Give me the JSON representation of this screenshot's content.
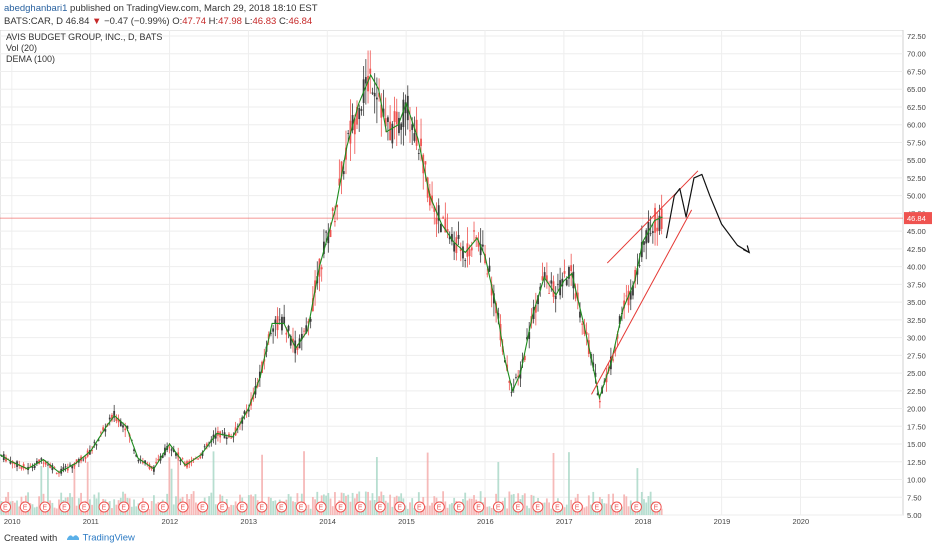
{
  "header": {
    "author": "abedghanbari1",
    "published_text": "published on TradingView.com, March 29, 2018 18:10 EST",
    "symbol_line_prefix": "BATS:CAR, D",
    "last_price": "46.84",
    "change_arrow": "▼",
    "change": "−0.47 (−0.99%)",
    "o_label": "O:",
    "o_value": "47.74",
    "h_label": "H:",
    "h_value": "47.98",
    "l_label": "L:",
    "l_value": "46.83",
    "c_label": "C:",
    "c_value": "46.84"
  },
  "legend": {
    "title": "AVIS BUDGET GROUP, INC., D, BATS",
    "vol": "Vol (20)",
    "dema": "DEMA (100)"
  },
  "footer": {
    "created_with": "Created with",
    "brand": "TradingView"
  },
  "colors": {
    "up": "#26a69a",
    "down": "#ef5350",
    "candle": "#3a3a3a",
    "dema": "#1e8c1e",
    "price_line": "#ef5350",
    "trend": "#e53935",
    "drawing": "#111111",
    "earnings": "#ef5350"
  },
  "chart_data": {
    "type": "line",
    "symbol": "BATS:CAR",
    "price_axis": {
      "ylim": [
        5.0,
        72.5
      ],
      "ticks": [
        "72.50",
        "70.00",
        "67.50",
        "65.00",
        "62.50",
        "60.00",
        "57.50",
        "55.00",
        "52.50",
        "50.00",
        "47.50",
        "45.00",
        "42.50",
        "40.00",
        "37.50",
        "35.00",
        "32.50",
        "30.00",
        "27.50",
        "25.00",
        "22.50",
        "20.00",
        "17.50",
        "15.00",
        "12.50",
        "10.00",
        "7.50",
        "5.00"
      ],
      "last_label": "46.84",
      "last_value": 46.84
    },
    "time_axis": {
      "xlim": [
        2009.85,
        2021.3
      ],
      "ticks": [
        {
          "label": "2010",
          "x": 2010
        },
        {
          "label": "2011",
          "x": 2011
        },
        {
          "label": "2012",
          "x": 2012
        },
        {
          "label": "2013",
          "x": 2013
        },
        {
          "label": "2014",
          "x": 2014
        },
        {
          "label": "2015",
          "x": 2015
        },
        {
          "label": "2016",
          "x": 2016
        },
        {
          "label": "2017",
          "x": 2017
        },
        {
          "label": "2018",
          "x": 2018
        },
        {
          "label": "2019",
          "x": 2019
        },
        {
          "label": "2020",
          "x": 2020
        }
      ]
    },
    "series": [
      {
        "name": "DEMA (100)",
        "x": [
          2009.85,
          2010.0,
          2010.2,
          2010.4,
          2010.6,
          2010.8,
          2011.0,
          2011.2,
          2011.3,
          2011.45,
          2011.6,
          2011.8,
          2012.0,
          2012.2,
          2012.4,
          2012.6,
          2012.8,
          2013.0,
          2013.15,
          2013.3,
          2013.45,
          2013.6,
          2013.75,
          2013.9,
          2014.1,
          2014.25,
          2014.4,
          2014.55,
          2014.65,
          2014.75,
          2014.9,
          2015.0,
          2015.15,
          2015.3,
          2015.45,
          2015.6,
          2015.75,
          2015.9,
          2016.0,
          2016.15,
          2016.25,
          2016.35,
          2016.45,
          2016.6,
          2016.75,
          2016.9,
          2017.0,
          2017.1,
          2017.25,
          2017.35,
          2017.45,
          2017.6,
          2017.75,
          2017.9,
          2018.0,
          2018.15,
          2018.25
        ],
        "values": [
          13.5,
          12.5,
          11.5,
          12.8,
          11.0,
          12.2,
          14.0,
          17.5,
          19.0,
          17.5,
          13.0,
          11.5,
          15.0,
          12.0,
          13.5,
          16.5,
          16.0,
          20.0,
          24.5,
          32.0,
          32.0,
          28.5,
          31.0,
          40.0,
          48.0,
          57.0,
          63.0,
          67.0,
          65.0,
          59.0,
          60.0,
          63.0,
          58.0,
          50.0,
          46.0,
          43.5,
          42.0,
          44.0,
          41.5,
          34.0,
          27.0,
          22.5,
          25.0,
          33.0,
          38.5,
          36.0,
          38.0,
          39.0,
          32.0,
          27.0,
          21.5,
          26.5,
          34.0,
          38.0,
          43.5,
          46.5,
          47.0
        ]
      }
    ],
    "candles_summary": "daily OHLC candles, up color grey/green, down color red",
    "earnings_markers": "E",
    "trend_lines": [
      {
        "x": [
          2017.35,
          2018.62
        ],
        "y": [
          22.0,
          48.0
        ]
      },
      {
        "x": [
          2017.55,
          2018.7
        ],
        "y": [
          40.5,
          53.5
        ]
      }
    ],
    "drawing_path": {
      "x": [
        2018.3,
        2018.4,
        2018.47,
        2018.55,
        2018.65,
        2018.75,
        2018.85,
        2019.0,
        2019.2,
        2019.35
      ],
      "y": [
        44.0,
        50.0,
        51.0,
        47.0,
        52.5,
        53.0,
        50.0,
        46.0,
        43.0,
        42.0
      ]
    }
  }
}
